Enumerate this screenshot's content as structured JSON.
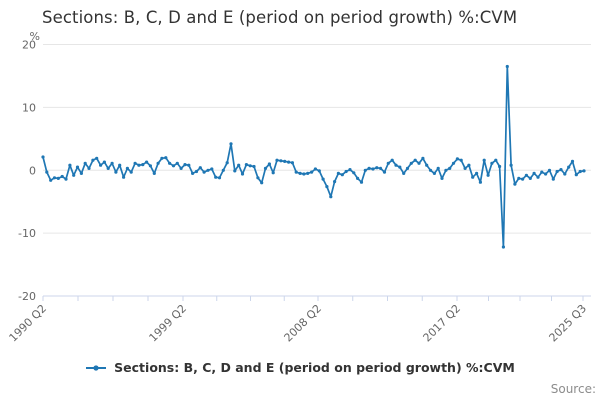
{
  "title": "Sections: B, C, D and E (period on period growth) %:CVM",
  "legend": {
    "label": "Sections: B, C, D and E (period on period growth) %:CVM"
  },
  "source_label": "Source:",
  "y_axis": {
    "unit_label": "%",
    "ticks": [
      20,
      10,
      0,
      -10,
      -20
    ],
    "min": -20,
    "max": 20
  },
  "x_axis": {
    "labels": [
      "1990 Q2",
      "1999 Q2",
      "2008 Q2",
      "2017 Q2",
      "2025 Q3"
    ]
  },
  "colors": {
    "line": "#1f77b4",
    "grid": "#e6e6e6",
    "axis": "#ccd6eb",
    "tick_text": "#666666",
    "title_text": "#333333",
    "source_text": "#8c8c8c"
  },
  "chart_data": {
    "type": "line",
    "title": "Sections: B, C, D and E (period on period growth) %:CVM",
    "xlabel": "",
    "ylabel": "%",
    "ylim": [
      -20,
      20
    ],
    "yticks": [
      20,
      10,
      0,
      -10,
      -20
    ],
    "grid": "horizontal",
    "legend_position": "bottom",
    "frequency": "quarterly",
    "x_start": "1990 Q2",
    "x_end": "2025 Q3",
    "x_tick_labels": [
      "1990 Q2",
      "1999 Q2",
      "2008 Q2",
      "2017 Q2",
      "2025 Q3"
    ],
    "series": [
      {
        "name": "Sections: B, C, D and E (period on period growth) %:CVM",
        "values": [
          2.1,
          -0.3,
          -1.6,
          -1.2,
          -1.3,
          -1.0,
          -1.4,
          0.8,
          -0.8,
          0.5,
          -0.5,
          1.1,
          0.3,
          1.6,
          1.9,
          0.8,
          1.3,
          0.3,
          1.1,
          -0.3,
          0.8,
          -1.1,
          0.3,
          -0.3,
          1.1,
          0.8,
          0.9,
          1.3,
          0.7,
          -0.5,
          1.1,
          1.9,
          2.0,
          1.1,
          0.7,
          1.1,
          0.3,
          0.9,
          0.8,
          -0.5,
          -0.2,
          0.4,
          -0.3,
          0.0,
          0.2,
          -1.1,
          -1.2,
          0.0,
          1.2,
          4.2,
          -0.1,
          0.8,
          -0.6,
          0.9,
          0.7,
          0.6,
          -1.2,
          -2.0,
          0.3,
          1.0,
          -0.4,
          1.6,
          1.5,
          1.4,
          1.3,
          1.2,
          -0.3,
          -0.5,
          -0.6,
          -0.5,
          -0.3,
          0.2,
          -0.1,
          -1.4,
          -2.6,
          -4.2,
          -1.8,
          -0.5,
          -0.7,
          -0.2,
          0.1,
          -0.4,
          -1.3,
          -1.9,
          0.0,
          0.3,
          0.2,
          0.4,
          0.3,
          -0.3,
          1.1,
          1.6,
          0.8,
          0.5,
          -0.5,
          0.3,
          1.1,
          1.6,
          1.1,
          1.9,
          0.8,
          0.0,
          -0.5,
          0.3,
          -1.3,
          0.0,
          0.3,
          1.1,
          1.8,
          1.6,
          0.3,
          0.8,
          -1.1,
          -0.5,
          -1.9,
          1.6,
          -0.8,
          1.1,
          1.6,
          0.6,
          -12.2,
          16.5,
          0.8,
          -2.2,
          -1.3,
          -1.4,
          -0.8,
          -1.3,
          -0.5,
          -1.1,
          -0.3,
          -0.6,
          0.0,
          -1.4,
          -0.2,
          0.1,
          -0.6,
          0.5,
          1.4,
          -0.7,
          -0.2,
          -0.1
        ]
      }
    ]
  }
}
